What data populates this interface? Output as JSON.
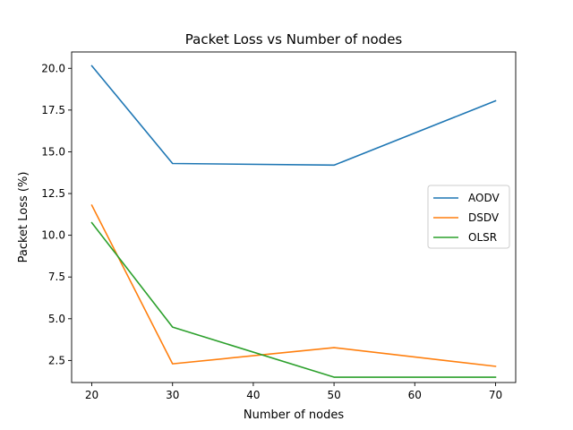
{
  "chart_data": {
    "type": "line",
    "title": "Packet Loss vs Number of nodes",
    "xlabel": "Number of nodes",
    "ylabel": "Packet Loss (%)",
    "x": [
      20,
      30,
      50,
      70
    ],
    "series": [
      {
        "name": "AODV",
        "values": [
          20.15,
          14.3,
          14.2,
          18.05
        ],
        "color": "#1f77b4"
      },
      {
        "name": "DSDV",
        "values": [
          11.8,
          2.3,
          3.27,
          2.15
        ],
        "color": "#ff7f0e"
      },
      {
        "name": "OLSR",
        "values": [
          10.75,
          4.5,
          1.5,
          1.5
        ],
        "color": "#2ca02c"
      }
    ],
    "xlim": [
      17.5,
      72.5
    ],
    "ylim": [
      1.18,
      20.98
    ],
    "xticks": [
      20,
      30,
      40,
      50,
      60,
      70
    ],
    "yticks": [
      2.5,
      5.0,
      7.5,
      10.0,
      12.5,
      15.0,
      17.5,
      20.0
    ],
    "ytick_labels": [
      "2.5",
      "5.0",
      "7.5",
      "10.0",
      "12.5",
      "15.0",
      "17.5",
      "20.0"
    ],
    "grid": false,
    "legend_position": "center-right"
  }
}
